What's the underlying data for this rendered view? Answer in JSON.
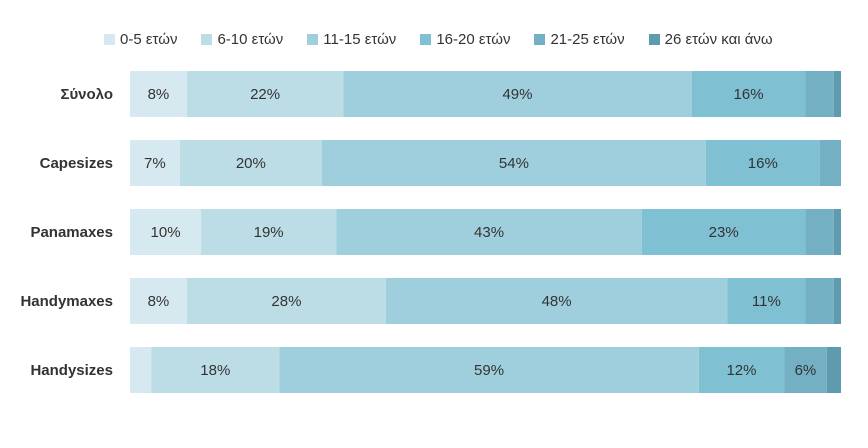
{
  "chart_data": {
    "type": "bar",
    "orientation": "horizontal",
    "stacked": true,
    "percent": true,
    "categories": [
      "Σύνολο",
      "Capesizes",
      "Panamaxes",
      "Handymaxes",
      "Handysizes"
    ],
    "series": [
      {
        "name": "0-5 ετών",
        "color": "#d7e9f0",
        "values": [
          8,
          7,
          10,
          8,
          3
        ]
      },
      {
        "name": "6-10 ετών",
        "color": "#bddde6",
        "values": [
          22,
          20,
          19,
          28,
          18
        ]
      },
      {
        "name": "11-15 ετών",
        "color": "#9fcfdd",
        "values": [
          49,
          54,
          43,
          48,
          59
        ]
      },
      {
        "name": "16-20 ετών",
        "color": "#7fc0d3",
        "values": [
          16,
          16,
          23,
          11,
          12
        ]
      },
      {
        "name": "21-25 ετών",
        "color": "#74b0c3",
        "values": [
          4,
          3,
          4,
          4,
          6
        ]
      },
      {
        "name": "26 ετών και άνω",
        "color": "#5f9bae",
        "values": [
          1,
          0,
          1,
          1,
          2
        ]
      }
    ],
    "value_labels_visible": [
      [
        true,
        true,
        true,
        true,
        false,
        false
      ],
      [
        true,
        true,
        true,
        true,
        false,
        false
      ],
      [
        true,
        true,
        true,
        true,
        false,
        false
      ],
      [
        true,
        true,
        true,
        true,
        false,
        false
      ],
      [
        false,
        true,
        true,
        true,
        true,
        false
      ]
    ],
    "legend_position": "top",
    "grid": false
  }
}
